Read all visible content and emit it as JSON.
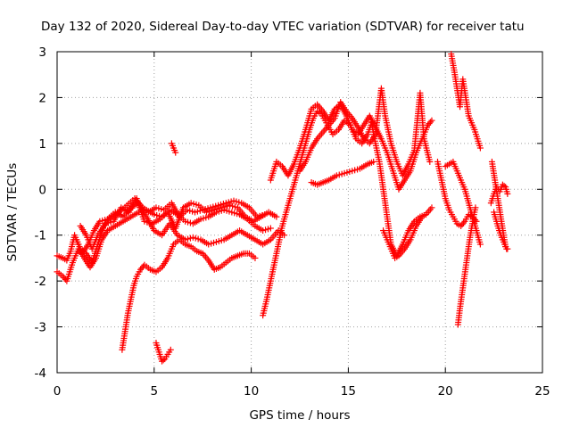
{
  "chart_data": {
    "type": "scatter",
    "title": "Day 132 of 2020, Sidereal Day-to-day VTEC variation (SDTVAR) for receiver tatu",
    "xlabel": "GPS time / hours",
    "ylabel": "SDTVAR / TECUs",
    "xlim": [
      0,
      25
    ],
    "ylim": [
      -4,
      3
    ],
    "xticks": [
      "0",
      "5",
      "10",
      "15",
      "20",
      "25"
    ],
    "yticks": [
      "-4",
      "-3",
      "-2",
      "-1",
      "0",
      "1",
      "2",
      "3"
    ],
    "grid": true,
    "marker": "+",
    "color": "#ff0000",
    "segments": [
      [
        [
          0.0,
          -1.45
        ],
        [
          0.3,
          -1.5
        ],
        [
          0.5,
          -1.55
        ],
        [
          0.7,
          -1.35
        ],
        [
          0.9,
          -1.0
        ],
        [
          1.2,
          -1.3
        ],
        [
          1.5,
          -1.4
        ],
        [
          1.8,
          -1.6
        ],
        [
          2.1,
          -1.2
        ],
        [
          2.4,
          -0.8
        ],
        [
          2.8,
          -0.6
        ],
        [
          3.2,
          -0.5
        ],
        [
          3.6,
          -0.35
        ],
        [
          4.0,
          -0.2
        ],
        [
          4.3,
          -0.35
        ],
        [
          4.7,
          -0.5
        ],
        [
          5.1,
          -0.4
        ],
        [
          5.5,
          -0.45
        ],
        [
          5.9,
          -0.3
        ],
        [
          6.3,
          -0.6
        ],
        [
          6.7,
          -0.45
        ],
        [
          7.1,
          -0.5
        ],
        [
          7.5,
          -0.45
        ],
        [
          7.9,
          -0.4
        ],
        [
          8.3,
          -0.35
        ],
        [
          8.7,
          -0.3
        ],
        [
          9.1,
          -0.25
        ],
        [
          9.5,
          -0.3
        ],
        [
          9.9,
          -0.4
        ],
        [
          10.3,
          -0.6
        ],
        [
          10.7,
          -0.55
        ]
      ],
      [
        [
          0.0,
          -1.8
        ],
        [
          0.3,
          -1.9
        ],
        [
          0.5,
          -2.0
        ],
        [
          0.8,
          -1.6
        ],
        [
          1.1,
          -1.3
        ],
        [
          1.4,
          -1.5
        ],
        [
          1.7,
          -1.7
        ],
        [
          2.0,
          -1.5
        ],
        [
          2.3,
          -1.1
        ],
        [
          2.6,
          -0.9
        ],
        [
          3.0,
          -0.8
        ],
        [
          3.4,
          -0.7
        ],
        [
          3.8,
          -0.6
        ],
        [
          4.2,
          -0.5
        ],
        [
          4.6,
          -0.45
        ],
        [
          5.0,
          -0.55
        ],
        [
          5.4,
          -0.6
        ],
        [
          5.8,
          -0.45
        ],
        [
          6.2,
          -0.55
        ],
        [
          6.6,
          -0.7
        ],
        [
          7.0,
          -0.75
        ],
        [
          7.4,
          -0.65
        ],
        [
          7.8,
          -0.6
        ],
        [
          8.2,
          -0.5
        ],
        [
          8.6,
          -0.45
        ],
        [
          9.0,
          -0.5
        ],
        [
          9.4,
          -0.55
        ],
        [
          9.8,
          -0.65
        ],
        [
          10.2,
          -0.8
        ],
        [
          10.6,
          -0.9
        ],
        [
          11.0,
          -0.85
        ]
      ],
      [
        [
          1.0,
          -1.1
        ],
        [
          1.3,
          -1.4
        ],
        [
          1.6,
          -1.2
        ],
        [
          1.9,
          -0.9
        ],
        [
          2.2,
          -0.7
        ],
        [
          2.6,
          -0.65
        ],
        [
          3.0,
          -0.5
        ],
        [
          3.4,
          -0.6
        ],
        [
          3.8,
          -0.4
        ],
        [
          4.2,
          -0.3
        ],
        [
          4.6,
          -0.6
        ],
        [
          5.0,
          -0.9
        ],
        [
          5.4,
          -1.0
        ],
        [
          5.8,
          -0.75
        ],
        [
          6.2,
          -1.0
        ],
        [
          6.6,
          -1.1
        ],
        [
          7.0,
          -1.05
        ],
        [
          7.4,
          -1.1
        ],
        [
          7.8,
          -1.2
        ],
        [
          8.2,
          -1.15
        ],
        [
          8.6,
          -1.1
        ],
        [
          9.0,
          -1.0
        ],
        [
          9.4,
          -0.9
        ],
        [
          9.8,
          -1.0
        ],
        [
          10.2,
          -1.1
        ],
        [
          10.6,
          -1.2
        ],
        [
          11.0,
          -1.1
        ],
        [
          11.4,
          -0.9
        ],
        [
          11.7,
          -1.0
        ]
      ],
      [
        [
          1.2,
          -0.8
        ],
        [
          1.5,
          -1.0
        ],
        [
          1.8,
          -1.3
        ],
        [
          2.1,
          -1.0
        ],
        [
          2.5,
          -0.75
        ],
        [
          2.9,
          -0.7
        ],
        [
          3.3,
          -0.4
        ],
        [
          3.7,
          -0.5
        ],
        [
          4.1,
          -0.2
        ],
        [
          4.5,
          -0.7
        ],
        [
          4.9,
          -0.75
        ],
        [
          5.3,
          -0.65
        ],
        [
          5.7,
          -0.5
        ],
        [
          6.1,
          -0.85
        ],
        [
          6.5,
          -0.4
        ],
        [
          6.9,
          -0.3
        ],
        [
          7.3,
          -0.35
        ],
        [
          7.7,
          -0.5
        ],
        [
          8.1,
          -0.45
        ],
        [
          8.5,
          -0.4
        ],
        [
          8.9,
          -0.35
        ],
        [
          9.3,
          -0.4
        ],
        [
          9.7,
          -0.6
        ],
        [
          10.1,
          -0.7
        ],
        [
          10.5,
          -0.6
        ],
        [
          10.9,
          -0.5
        ],
        [
          11.3,
          -0.6
        ]
      ],
      [
        [
          3.35,
          -3.5
        ],
        [
          3.5,
          -3.1
        ],
        [
          3.65,
          -2.7
        ],
        [
          3.8,
          -2.4
        ],
        [
          3.95,
          -2.1
        ],
        [
          4.1,
          -1.9
        ],
        [
          4.3,
          -1.75
        ],
        [
          4.5,
          -1.65
        ],
        [
          4.8,
          -1.75
        ],
        [
          5.1,
          -1.8
        ],
        [
          5.4,
          -1.7
        ],
        [
          5.7,
          -1.5
        ],
        [
          6.0,
          -1.2
        ],
        [
          6.3,
          -1.1
        ],
        [
          6.6,
          -1.2
        ],
        [
          6.9,
          -1.25
        ],
        [
          7.2,
          -1.35
        ],
        [
          7.5,
          -1.4
        ],
        [
          7.8,
          -1.55
        ],
        [
          8.1,
          -1.75
        ],
        [
          8.4,
          -1.7
        ],
        [
          8.7,
          -1.6
        ],
        [
          9.0,
          -1.5
        ],
        [
          9.3,
          -1.45
        ],
        [
          9.6,
          -1.4
        ],
        [
          9.9,
          -1.4
        ],
        [
          10.2,
          -1.5
        ]
      ],
      [
        [
          5.1,
          -3.35
        ],
        [
          5.25,
          -3.55
        ],
        [
          5.4,
          -3.75
        ],
        [
          5.55,
          -3.7
        ],
        [
          5.7,
          -3.6
        ],
        [
          5.85,
          -3.5
        ]
      ],
      [
        [
          5.9,
          1.0
        ],
        [
          6.0,
          0.9
        ],
        [
          6.1,
          0.8
        ]
      ],
      [
        [
          10.6,
          -2.75
        ],
        [
          10.8,
          -2.4
        ],
        [
          11.0,
          -2.0
        ],
        [
          11.2,
          -1.6
        ],
        [
          11.4,
          -1.2
        ],
        [
          11.6,
          -0.8
        ],
        [
          11.8,
          -0.5
        ],
        [
          12.0,
          -0.2
        ],
        [
          12.2,
          0.1
        ],
        [
          12.4,
          0.4
        ],
        [
          12.6,
          0.7
        ],
        [
          12.8,
          1.0
        ],
        [
          13.0,
          1.3
        ],
        [
          13.2,
          1.55
        ],
        [
          13.4,
          1.7
        ],
        [
          13.6,
          1.65
        ],
        [
          13.8,
          1.5
        ],
        [
          14.0,
          1.35
        ],
        [
          14.2,
          1.2
        ],
        [
          14.5,
          1.3
        ],
        [
          14.8,
          1.5
        ],
        [
          15.1,
          1.4
        ],
        [
          15.4,
          1.1
        ],
        [
          15.7,
          1.0
        ],
        [
          16.0,
          1.2
        ],
        [
          16.2,
          1.45
        ],
        [
          16.4,
          1.0
        ],
        [
          16.6,
          0.6
        ],
        [
          16.8,
          0.0
        ],
        [
          17.0,
          -0.6
        ],
        [
          17.2,
          -1.2
        ],
        [
          17.5,
          -1.45
        ],
        [
          17.8,
          -1.2
        ],
        [
          18.1,
          -0.9
        ],
        [
          18.4,
          -0.7
        ],
        [
          18.7,
          -0.6
        ],
        [
          19.0,
          -0.55
        ],
        [
          19.3,
          -0.4
        ]
      ],
      [
        [
          11.0,
          0.2
        ],
        [
          11.3,
          0.6
        ],
        [
          11.6,
          0.5
        ],
        [
          11.9,
          0.3
        ],
        [
          12.2,
          0.55
        ],
        [
          12.5,
          0.9
        ],
        [
          12.8,
          1.3
        ],
        [
          13.1,
          1.75
        ],
        [
          13.4,
          1.85
        ],
        [
          13.7,
          1.7
        ],
        [
          14.0,
          1.5
        ],
        [
          14.3,
          1.75
        ],
        [
          14.6,
          1.85
        ],
        [
          14.9,
          1.6
        ],
        [
          15.2,
          1.3
        ],
        [
          15.5,
          1.2
        ],
        [
          15.8,
          1.4
        ],
        [
          16.1,
          1.6
        ],
        [
          16.4,
          1.35
        ],
        [
          16.7,
          1.1
        ],
        [
          17.0,
          0.8
        ],
        [
          17.3,
          0.4
        ],
        [
          17.6,
          0.0
        ],
        [
          17.9,
          0.2
        ],
        [
          18.2,
          0.4
        ],
        [
          18.5,
          0.8
        ],
        [
          18.8,
          1.1
        ],
        [
          19.1,
          1.4
        ],
        [
          19.3,
          1.5
        ]
      ],
      [
        [
          12.5,
          0.4
        ],
        [
          12.8,
          0.6
        ],
        [
          13.1,
          0.9
        ],
        [
          13.4,
          1.1
        ],
        [
          13.7,
          1.25
        ],
        [
          14.0,
          1.4
        ],
        [
          14.3,
          1.55
        ],
        [
          14.6,
          1.9
        ],
        [
          14.9,
          1.7
        ],
        [
          15.2,
          1.55
        ],
        [
          15.5,
          1.35
        ],
        [
          15.8,
          1.1
        ],
        [
          16.1,
          1.0
        ],
        [
          16.4,
          1.2
        ],
        [
          16.7,
          2.2
        ],
        [
          16.9,
          1.6
        ],
        [
          17.2,
          1.0
        ],
        [
          17.5,
          0.6
        ],
        [
          17.8,
          0.3
        ],
        [
          18.1,
          0.55
        ],
        [
          18.4,
          0.85
        ],
        [
          18.7,
          2.1
        ],
        [
          18.9,
          1.1
        ],
        [
          19.2,
          0.6
        ]
      ],
      [
        [
          13.1,
          0.15
        ],
        [
          13.4,
          0.1
        ],
        [
          13.7,
          0.15
        ],
        [
          14.0,
          0.2
        ],
        [
          14.4,
          0.3
        ],
        [
          14.8,
          0.35
        ],
        [
          15.2,
          0.4
        ],
        [
          15.6,
          0.45
        ],
        [
          16.0,
          0.55
        ],
        [
          16.3,
          0.6
        ]
      ],
      [
        [
          16.8,
          -0.9
        ],
        [
          17.0,
          -1.1
        ],
        [
          17.2,
          -1.3
        ],
        [
          17.4,
          -1.5
        ],
        [
          17.6,
          -1.45
        ],
        [
          17.9,
          -1.3
        ],
        [
          18.2,
          -1.1
        ],
        [
          18.5,
          -0.8
        ],
        [
          18.8,
          -0.6
        ]
      ],
      [
        [
          19.6,
          0.6
        ],
        [
          19.8,
          0.2
        ],
        [
          20.0,
          -0.2
        ],
        [
          20.2,
          -0.45
        ],
        [
          20.4,
          -0.6
        ],
        [
          20.6,
          -0.75
        ],
        [
          20.8,
          -0.8
        ],
        [
          21.0,
          -0.7
        ],
        [
          21.2,
          -0.55
        ],
        [
          21.4,
          -0.6
        ],
        [
          21.6,
          -0.7
        ]
      ],
      [
        [
          20.0,
          0.5
        ],
        [
          20.2,
          0.55
        ],
        [
          20.4,
          0.6
        ],
        [
          20.6,
          0.4
        ],
        [
          20.8,
          0.2
        ],
        [
          21.0,
          0.0
        ],
        [
          21.2,
          -0.3
        ],
        [
          21.4,
          -0.6
        ],
        [
          21.6,
          -0.9
        ],
        [
          21.8,
          -1.2
        ]
      ],
      [
        [
          20.3,
          2.95
        ],
        [
          20.45,
          2.6
        ],
        [
          20.6,
          2.2
        ],
        [
          20.75,
          1.8
        ],
        [
          20.9,
          2.4
        ],
        [
          21.05,
          2.0
        ],
        [
          21.2,
          1.6
        ],
        [
          21.35,
          1.45
        ],
        [
          21.5,
          1.3
        ],
        [
          21.65,
          1.1
        ],
        [
          21.8,
          0.9
        ]
      ],
      [
        [
          20.65,
          -2.95
        ],
        [
          20.75,
          -2.6
        ],
        [
          20.85,
          -2.3
        ],
        [
          20.95,
          -2.0
        ],
        [
          21.05,
          -1.7
        ],
        [
          21.15,
          -1.4
        ],
        [
          21.25,
          -1.1
        ],
        [
          21.35,
          -0.85
        ],
        [
          21.45,
          -0.6
        ],
        [
          21.55,
          -0.4
        ]
      ],
      [
        [
          22.4,
          0.6
        ],
        [
          22.55,
          0.2
        ],
        [
          22.7,
          -0.2
        ],
        [
          22.85,
          -0.6
        ],
        [
          23.0,
          -1.0
        ],
        [
          23.1,
          -1.25
        ],
        [
          23.2,
          -1.3
        ]
      ],
      [
        [
          22.35,
          -0.3
        ],
        [
          22.5,
          -0.1
        ],
        [
          22.65,
          0.05
        ],
        [
          22.8,
          -0.05
        ],
        [
          22.95,
          0.1
        ],
        [
          23.1,
          0.05
        ],
        [
          23.2,
          -0.1
        ]
      ],
      [
        [
          22.5,
          -0.5
        ],
        [
          22.7,
          -0.8
        ],
        [
          22.85,
          -1.0
        ],
        [
          23.0,
          -1.15
        ],
        [
          23.15,
          -1.3
        ]
      ]
    ]
  }
}
